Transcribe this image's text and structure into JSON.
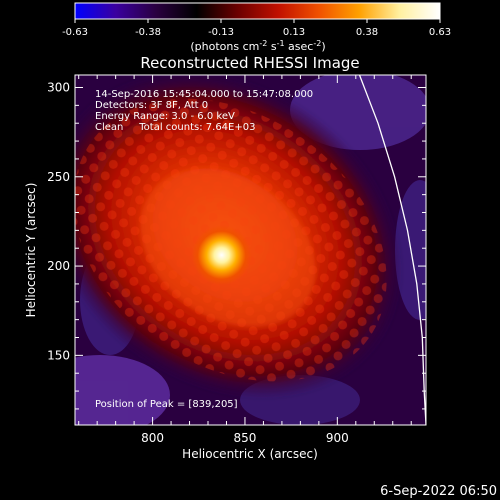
{
  "chart_data": {
    "type": "heatmap",
    "title": "Reconstructed RHESSI Image",
    "xlabel": "Heliocentric X (arcsec)",
    "ylabel": "Heliocentric Y (arcsec)",
    "xlim": [
      758,
      948
    ],
    "ylim": [
      111,
      307
    ],
    "xticks": [
      800,
      850,
      900
    ],
    "yticks": [
      150,
      200,
      250,
      300
    ],
    "colorbar": {
      "label_prefix": "(photons cm",
      "label_exp1": "-2",
      "label_mid": " s",
      "label_exp2": "-1",
      "label_mid2": " asec",
      "label_exp3": "-2",
      "label_suffix": ")",
      "range": [
        -0.63,
        0.63
      ],
      "ticks": [
        "-0.63",
        "-0.38",
        "-0.13",
        "0.13",
        "0.38",
        "0.63"
      ],
      "colors": [
        "#0000ff",
        "#3a00a0",
        "#2a0040",
        "#000000",
        "#6a0000",
        "#c01000",
        "#f05000",
        "#ffa000",
        "#fff0a0",
        "#ffffff"
      ]
    },
    "annotations": [
      "14-Sep-2016 15:45:04.000 to 15:47:08.000",
      "Detectors: 3F 8F, Att 0",
      "Energy Range: 3.0 - 6.0 keV",
      "Clean     Total counts: 7.64E+03"
    ],
    "peak_label": "Position of Peak = [839,205]",
    "peak": [
      839,
      205
    ],
    "limb_curve": [
      [
        912,
        307
      ],
      [
        922,
        280
      ],
      [
        931,
        250
      ],
      [
        938,
        220
      ],
      [
        943,
        190
      ],
      [
        946,
        160
      ],
      [
        947,
        130
      ],
      [
        948,
        111
      ]
    ]
  },
  "footer": {
    "timestamp": "6-Sep-2022 06:50"
  }
}
